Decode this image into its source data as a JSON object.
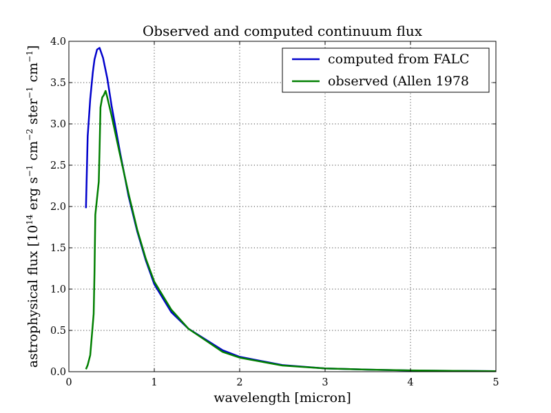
{
  "chart_data": {
    "type": "line",
    "title": "Observed and computed continuum flux",
    "xlabel": "wavelength [micron]",
    "ylabel": {
      "main": "astrophysical flux [10",
      "exp1": "14",
      "erg": " erg s",
      "exp2": "−1",
      "cm": " cm",
      "exp3": "−2",
      "ster": " ster",
      "exp4": "−1",
      "cm2": " cm",
      "exp5": "−1",
      "close": "]"
    },
    "xlim": [
      0,
      5
    ],
    "ylim": [
      0,
      4
    ],
    "xticks": [
      0,
      1,
      2,
      3,
      4,
      5
    ],
    "xtick_labels": [
      "0",
      "1",
      "2",
      "3",
      "4",
      "5"
    ],
    "yticks": [
      0,
      0.5,
      1,
      1.5,
      2,
      2.5,
      3,
      3.5,
      4
    ],
    "ytick_labels": [
      "0.0",
      "0.5",
      "1.0",
      "1.5",
      "2.0",
      "2.5",
      "3.0",
      "3.5",
      "4.0"
    ],
    "grid": true,
    "legend_position": "top-right",
    "series": [
      {
        "name": "computed from FALC",
        "color": "#0000cc",
        "x": [
          0.2,
          0.22,
          0.25,
          0.28,
          0.3,
          0.33,
          0.36,
          0.4,
          0.45,
          0.5,
          0.6,
          0.7,
          0.8,
          0.9,
          1.0,
          1.2,
          1.4,
          1.6,
          1.8,
          2.0,
          2.5,
          3.0,
          3.5,
          4.0,
          4.5,
          5.0
        ],
        "y": [
          1.98,
          2.85,
          3.3,
          3.62,
          3.78,
          3.9,
          3.92,
          3.8,
          3.55,
          3.22,
          2.65,
          2.12,
          1.7,
          1.35,
          1.06,
          0.72,
          0.52,
          0.39,
          0.26,
          0.18,
          0.08,
          0.04,
          0.025,
          0.015,
          0.01,
          0.007
        ]
      },
      {
        "name": "observed (Allen 1978",
        "color": "#007f00",
        "x": [
          0.2,
          0.22,
          0.25,
          0.27,
          0.29,
          0.3,
          0.31,
          0.33,
          0.35,
          0.36,
          0.37,
          0.39,
          0.41,
          0.43,
          0.45,
          0.5,
          0.6,
          0.7,
          0.8,
          0.9,
          1.0,
          1.2,
          1.4,
          1.6,
          1.8,
          2.0,
          2.5,
          3.0,
          3.5,
          4.0,
          4.5,
          5.0
        ],
        "y": [
          0.03,
          0.08,
          0.2,
          0.45,
          0.7,
          1.2,
          1.9,
          2.1,
          2.3,
          2.7,
          3.2,
          3.32,
          3.35,
          3.4,
          3.32,
          3.1,
          2.62,
          2.15,
          1.72,
          1.37,
          1.09,
          0.75,
          0.52,
          0.38,
          0.24,
          0.17,
          0.075,
          0.04,
          0.025,
          0.016,
          0.01,
          0.007
        ]
      }
    ]
  }
}
